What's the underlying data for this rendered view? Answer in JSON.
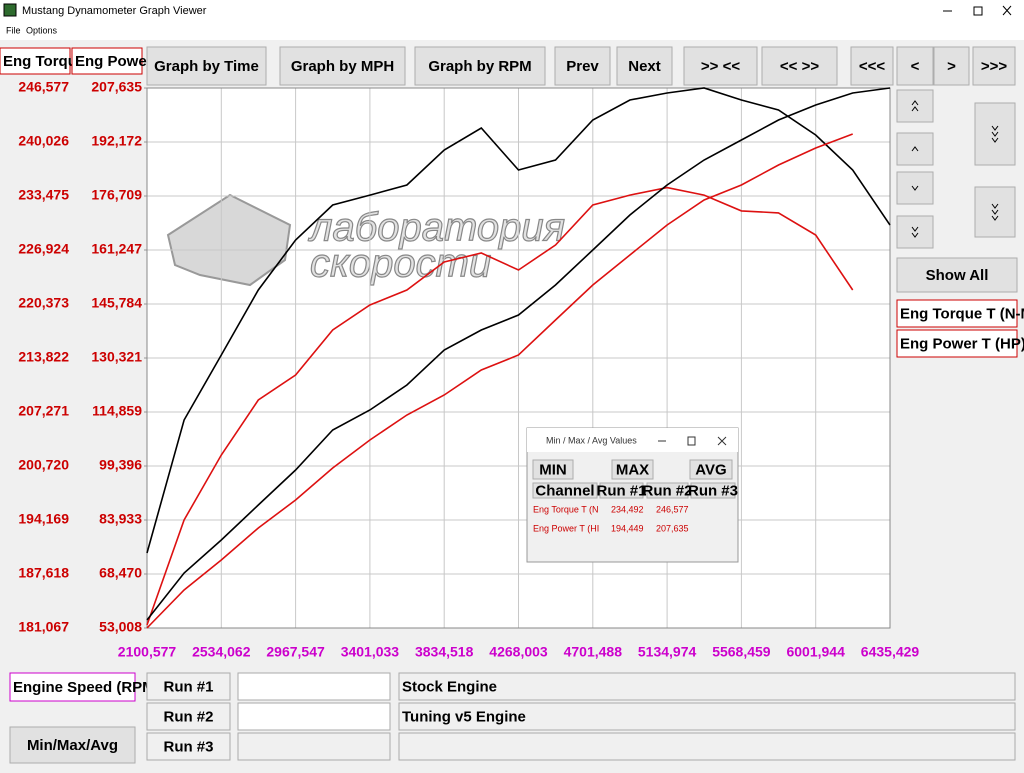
{
  "window": {
    "title": "Mustang Dynamometer Graph Viewer",
    "menu": [
      "File",
      "Options"
    ]
  },
  "toolbar": {
    "channels": [
      "Eng Torqu",
      "Eng Powe"
    ],
    "buttons": [
      "Graph by Time",
      "Graph by MPH",
      "Graph by RPM",
      "Prev",
      "Next",
      ">> <<",
      "<< >>",
      "<<<",
      "<",
      ">",
      ">>>"
    ]
  },
  "side_panel": {
    "show_all": "Show All",
    "channels": [
      "Eng Torque T (N-M",
      "Eng Power T (HP)"
    ]
  },
  "watermark": [
    "лаборатория",
    "скорости"
  ],
  "chart_data": {
    "type": "line",
    "x": [
      2100.577,
      2317,
      2534.062,
      2750,
      2967.547,
      3184,
      3401.033,
      3617,
      3834.518,
      4051,
      4268.003,
      4484,
      4701.488,
      4918,
      5134.974,
      5351,
      5568.459,
      5785,
      6001.944,
      6218,
      6435.429
    ],
    "xlim": [
      2100.577,
      6435.429
    ],
    "xticks": [
      {
        "value": 2100.577,
        "label": "2100,577"
      },
      {
        "value": 2534.062,
        "label": "2534,062"
      },
      {
        "value": 2967.547,
        "label": "2967,547"
      },
      {
        "value": 3401.033,
        "label": "3401,033"
      },
      {
        "value": 3834.518,
        "label": "3834,518"
      },
      {
        "value": 4268.003,
        "label": "4268,003"
      },
      {
        "value": 4701.488,
        "label": "4701,488"
      },
      {
        "value": 5134.974,
        "label": "5134,974"
      },
      {
        "value": 5568.459,
        "label": "5568,459"
      },
      {
        "value": 6001.944,
        "label": "6001,944"
      },
      {
        "value": 6435.429,
        "label": "6435,429"
      }
    ],
    "ylim": [
      181.067,
      246.577
    ],
    "yticks": [
      {
        "value": 181.067,
        "label": "181,067"
      },
      {
        "value": 187.618,
        "label": "187,618"
      },
      {
        "value": 194.169,
        "label": "194,169"
      },
      {
        "value": 200.72,
        "label": "200,720"
      },
      {
        "value": 207.271,
        "label": "207,271"
      },
      {
        "value": 213.822,
        "label": "213,822"
      },
      {
        "value": 220.373,
        "label": "220,373"
      },
      {
        "value": 226.924,
        "label": "226,924"
      },
      {
        "value": 233.475,
        "label": "233,475"
      },
      {
        "value": 240.026,
        "label": "240,026"
      },
      {
        "value": 246.577,
        "label": "246,577"
      }
    ],
    "y2lim": [
      53.008,
      207.635
    ],
    "y2ticks": [
      {
        "value": 53.008,
        "label": "53,008"
      },
      {
        "value": 68.47,
        "label": "68,470"
      },
      {
        "value": 83.933,
        "label": "83,933"
      },
      {
        "value": 99.396,
        "label": "99,396"
      },
      {
        "value": 114.859,
        "label": "114,859"
      },
      {
        "value": 130.321,
        "label": "130,321"
      },
      {
        "value": 145.784,
        "label": "145,784"
      },
      {
        "value": 161.247,
        "label": "161,247"
      },
      {
        "value": 176.709,
        "label": "176,709"
      },
      {
        "value": 192.172,
        "label": "192,172"
      },
      {
        "value": 207.635,
        "label": "207,635"
      }
    ],
    "grid": true,
    "series": [
      {
        "color": "#000000",
        "values": [
          190.17,
          206.3,
          214.19,
          222.07,
          228.14,
          232.38,
          233.59,
          234.81,
          239.05,
          241.72,
          236.63,
          237.84,
          242.69,
          245.12,
          245.97,
          246.577,
          245.12,
          243.91,
          240.87,
          236.63,
          229.96
        ]
      },
      {
        "color": "#dd1111",
        "values": [
          181.43,
          194.17,
          202.05,
          208.73,
          211.76,
          217.22,
          220.25,
          222.07,
          225.47,
          226.56,
          224.5,
          227.53,
          232.38,
          233.59,
          234.492,
          233.59,
          231.67,
          231.43,
          228.74,
          222.07,
          null
        ]
      },
      {
        "color": "#000000",
        "axis": "y2",
        "values": [
          55.3,
          68.76,
          78.21,
          88.23,
          98.25,
          109.7,
          115.43,
          122.59,
          132.61,
          138.34,
          142.63,
          151.23,
          161.25,
          171.27,
          179.86,
          187.02,
          192.75,
          198.47,
          202.77,
          206.21,
          207.635
        ]
      },
      {
        "color": "#dd1111",
        "axis": "y2",
        "values": [
          53.008,
          63.89,
          72.48,
          81.64,
          89.66,
          98.82,
          106.84,
          114.0,
          119.73,
          126.89,
          131.18,
          141.2,
          151.23,
          159.82,
          168.41,
          175.57,
          179.86,
          185.59,
          190.46,
          194.449,
          null
        ]
      }
    ]
  },
  "bottom_panel": {
    "x_channel": "Engine Speed (RPM",
    "button": "Min/Max/Avg",
    "runs": [
      "Run #1",
      "Run #2",
      "Run #3"
    ],
    "descriptions": [
      "Stock Engine",
      "Tuning v5 Engine"
    ]
  },
  "popup": {
    "title": "Min / Max / Avg Values",
    "buttons": [
      "MIN",
      "MAX",
      "AVG"
    ],
    "columns": [
      "Channel",
      "Run #1",
      "Run #2",
      "Run #3"
    ],
    "rows": [
      [
        "Eng Torque T (N",
        "234,492",
        "246,577"
      ],
      [
        "Eng Power T (HI",
        "194,449",
        "207,635"
      ]
    ]
  }
}
